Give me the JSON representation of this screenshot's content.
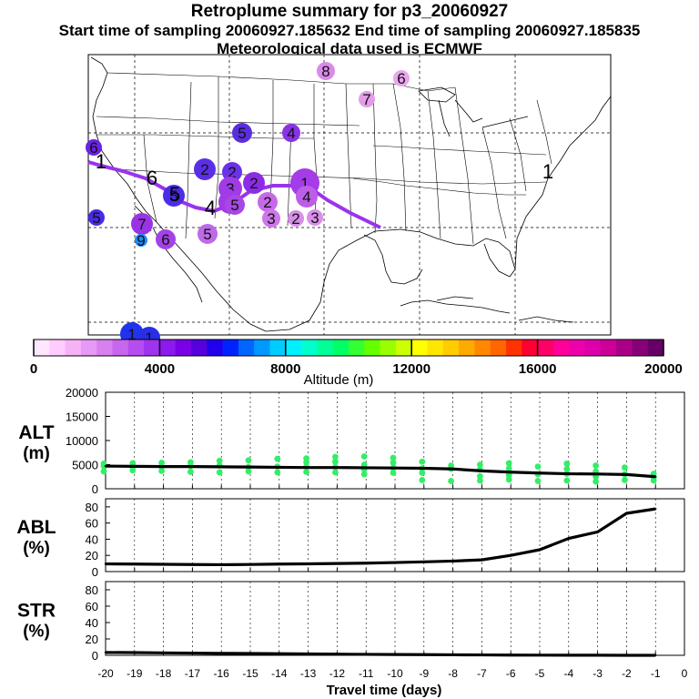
{
  "header": {
    "title": "Retroplume summary for p3_20060927",
    "subtitle": "Start time of sampling 20060927.185632     End time of sampling 20060927.185835",
    "met": "Meteorological data used is ECMWF"
  },
  "colorbar": {
    "tick_labels": [
      "0",
      "4000",
      "8000",
      "12000",
      "16000",
      "20000"
    ],
    "label": "Altitude (m)",
    "colors": [
      "#ffe6ff",
      "#ffccff",
      "#f5b3f5",
      "#e699f5",
      "#d980f0",
      "#c866ee",
      "#b54df0",
      "#9f33f0",
      "#8c1aee",
      "#7a00e6",
      "#5500dd",
      "#2200ee",
      "#0022ff",
      "#0066ff",
      "#0099ff",
      "#00ccff",
      "#00f0ff",
      "#00ffcc",
      "#00ff99",
      "#00ff66",
      "#33ff33",
      "#66ff00",
      "#99ff00",
      "#ccff00",
      "#ffff00",
      "#ffe600",
      "#ffcc00",
      "#ffaa00",
      "#ff8800",
      "#ff6600",
      "#ff3300",
      "#ff0033",
      "#ff0066",
      "#ff0099",
      "#ee00aa",
      "#dd00aa",
      "#cc0099",
      "#aa0088",
      "#880077",
      "#660066"
    ]
  },
  "map": {
    "source_label": "1",
    "markers": [
      {
        "label": "8",
        "x": 358,
        "y": 78,
        "r": 10,
        "color": "#d98be8"
      },
      {
        "label": "6",
        "x": 441,
        "y": 86,
        "r": 9,
        "color": "#e9a6f0"
      },
      {
        "label": "7",
        "x": 403,
        "y": 109,
        "r": 9,
        "color": "#e09ee8"
      },
      {
        "label": "5",
        "x": 266,
        "y": 146,
        "r": 11,
        "color": "#5a2ee0"
      },
      {
        "label": "4",
        "x": 320,
        "y": 146,
        "r": 10,
        "color": "#8a33e6"
      },
      {
        "label": "6",
        "x": 103,
        "y": 162,
        "r": 9,
        "color": "#6a22e6"
      },
      {
        "label": "2",
        "x": 225,
        "y": 186,
        "r": 12,
        "color": "#5b2ee6"
      },
      {
        "label": "2",
        "x": 255,
        "y": 189,
        "r": 11,
        "color": "#6a33e6"
      },
      {
        "label": "2",
        "x": 279,
        "y": 201,
        "r": 12,
        "color": "#8b2de6"
      },
      {
        "label": "1",
        "x": 335,
        "y": 201,
        "r": 16,
        "color": "#a43ce8"
      },
      {
        "label": "3",
        "x": 253,
        "y": 207,
        "r": 13,
        "color": "#a03be6"
      },
      {
        "label": "5",
        "x": 191,
        "y": 215,
        "r": 12,
        "color": "#4c2ce6"
      },
      {
        "label": "3",
        "x": 253,
        "y": 222,
        "r": 13,
        "color": "#a03be6"
      },
      {
        "label": "2",
        "x": 294,
        "y": 222,
        "r": 11,
        "color": "#c46ae8"
      },
      {
        "label": "4",
        "x": 337,
        "y": 216,
        "r": 12,
        "color": "#bd5ee8"
      },
      {
        "label": "5",
        "x": 258,
        "y": 225,
        "r": 11,
        "color": "#a846e6"
      },
      {
        "label": "3",
        "x": 298,
        "y": 240,
        "r": 10,
        "color": "#cd77e8"
      },
      {
        "label": "2",
        "x": 325,
        "y": 240,
        "r": 9,
        "color": "#d68ee8"
      },
      {
        "label": "3",
        "x": 346,
        "y": 239,
        "r": 9,
        "color": "#da90ea"
      },
      {
        "label": "5",
        "x": 106,
        "y": 239,
        "r": 9,
        "color": "#4a2ae6"
      },
      {
        "label": "7",
        "x": 156,
        "y": 246,
        "r": 12,
        "color": "#9a33e6"
      },
      {
        "label": "5",
        "x": 228,
        "y": 257,
        "r": 11,
        "color": "#bd6ae8"
      },
      {
        "label": "6",
        "x": 182,
        "y": 263,
        "r": 11,
        "color": "#a342e6"
      },
      {
        "label": "9",
        "x": 155,
        "y": 264,
        "r": 7,
        "color": "#1a8cff"
      },
      {
        "label": "1",
        "x": 145,
        "y": 367,
        "r": 13,
        "color": "#2233ee"
      },
      {
        "label": "1",
        "x": 164,
        "y": 371,
        "r": 12,
        "color": "#2a2ee6"
      }
    ],
    "path_labels": [
      {
        "label": "1",
        "x": 111,
        "y": 185
      },
      {
        "label": "6",
        "x": 167,
        "y": 203
      },
      {
        "label": "5",
        "x": 192,
        "y": 221
      },
      {
        "label": "4",
        "x": 231,
        "y": 236
      },
      {
        "label": "1",
        "x": 602,
        "y": 196
      }
    ]
  },
  "chart_data": [
    {
      "type": "scatter",
      "panel": "ALT",
      "ylabel": "ALT (m)",
      "xlabel": "Travel time (days)",
      "xlim": [
        -20,
        0
      ],
      "ylim": [
        0,
        20000
      ],
      "yticks": [
        "0",
        "5000",
        "10000",
        "15000",
        "20000"
      ],
      "xticks": [
        "-20",
        "-19",
        "-18",
        "-17",
        "-16",
        "-15",
        "-14",
        "-13",
        "-12",
        "-11",
        "-10",
        "-9",
        "-8",
        "-7",
        "-6",
        "-5",
        "-4",
        "-3",
        "-2",
        "-1",
        "0"
      ],
      "series": [
        {
          "name": "plume centroid altitude",
          "x": [
            -20,
            -19,
            -18,
            -17,
            -16,
            -15,
            -14,
            -13,
            -12,
            -11,
            -10,
            -9,
            -8,
            -7,
            -6,
            -5,
            -4,
            -3,
            -2,
            -1
          ],
          "values": [
            4700,
            4650,
            4600,
            4600,
            4550,
            4500,
            4450,
            4400,
            4400,
            4350,
            4300,
            4250,
            4100,
            3700,
            3450,
            3250,
            3100,
            3050,
            2950,
            2500
          ]
        },
        {
          "name": "cluster altitudes",
          "points": [
            {
              "x": -20,
              "y": 3600
            },
            {
              "x": -20,
              "y": 4700
            },
            {
              "x": -20,
              "y": 5200
            },
            {
              "x": -19,
              "y": 3800
            },
            {
              "x": -19,
              "y": 4500
            },
            {
              "x": -19,
              "y": 5300
            },
            {
              "x": -18,
              "y": 3700
            },
            {
              "x": -18,
              "y": 4600
            },
            {
              "x": -18,
              "y": 5400
            },
            {
              "x": -17,
              "y": 3500
            },
            {
              "x": -17,
              "y": 4700
            },
            {
              "x": -17,
              "y": 5500
            },
            {
              "x": -16,
              "y": 3400
            },
            {
              "x": -16,
              "y": 4800
            },
            {
              "x": -16,
              "y": 5800
            },
            {
              "x": -15,
              "y": 3600
            },
            {
              "x": -15,
              "y": 4500
            },
            {
              "x": -15,
              "y": 5900
            },
            {
              "x": -14,
              "y": 3400
            },
            {
              "x": -14,
              "y": 4600
            },
            {
              "x": -14,
              "y": 6200
            },
            {
              "x": -13,
              "y": 3500
            },
            {
              "x": -13,
              "y": 4600
            },
            {
              "x": -13,
              "y": 5500
            },
            {
              "x": -13,
              "y": 6300
            },
            {
              "x": -12,
              "y": 3400
            },
            {
              "x": -12,
              "y": 4500
            },
            {
              "x": -12,
              "y": 5600
            },
            {
              "x": -12,
              "y": 6600
            },
            {
              "x": -11,
              "y": 3000
            },
            {
              "x": -11,
              "y": 4000
            },
            {
              "x": -11,
              "y": 5000
            },
            {
              "x": -11,
              "y": 6700
            },
            {
              "x": -10,
              "y": 3300
            },
            {
              "x": -10,
              "y": 4300
            },
            {
              "x": -10,
              "y": 5400
            },
            {
              "x": -10,
              "y": 6400
            },
            {
              "x": -9,
              "y": 1800
            },
            {
              "x": -9,
              "y": 3300
            },
            {
              "x": -9,
              "y": 4200
            },
            {
              "x": -9,
              "y": 5600
            },
            {
              "x": -8,
              "y": 1600
            },
            {
              "x": -8,
              "y": 4100
            },
            {
              "x": -8,
              "y": 4800
            },
            {
              "x": -7,
              "y": 1700
            },
            {
              "x": -7,
              "y": 2600
            },
            {
              "x": -7,
              "y": 4000
            },
            {
              "x": -7,
              "y": 5000
            },
            {
              "x": -6,
              "y": 1900
            },
            {
              "x": -6,
              "y": 2800
            },
            {
              "x": -6,
              "y": 4200
            },
            {
              "x": -6,
              "y": 5300
            },
            {
              "x": -5,
              "y": 1600
            },
            {
              "x": -5,
              "y": 3000
            },
            {
              "x": -5,
              "y": 4600
            },
            {
              "x": -4,
              "y": 1700
            },
            {
              "x": -4,
              "y": 3100
            },
            {
              "x": -4,
              "y": 4100
            },
            {
              "x": -4,
              "y": 5200
            },
            {
              "x": -3,
              "y": 1500
            },
            {
              "x": -3,
              "y": 2500
            },
            {
              "x": -3,
              "y": 3600
            },
            {
              "x": -3,
              "y": 4800
            },
            {
              "x": -2,
              "y": 1800
            },
            {
              "x": -2,
              "y": 3000
            },
            {
              "x": -2,
              "y": 4400
            },
            {
              "x": -1,
              "y": 1700
            },
            {
              "x": -1,
              "y": 2300
            },
            {
              "x": -1,
              "y": 3100
            }
          ]
        }
      ]
    },
    {
      "type": "line",
      "panel": "ABL",
      "ylabel": "ABL (%)",
      "xlim": [
        -20,
        0
      ],
      "ylim": [
        0,
        90
      ],
      "yticks": [
        "0",
        "20",
        "40",
        "60",
        "80"
      ],
      "series": [
        {
          "name": "fraction in boundary layer",
          "x": [
            -20,
            -19,
            -18,
            -17,
            -16,
            -15,
            -14,
            -13,
            -12,
            -11,
            -10,
            -9,
            -8,
            -7,
            -6,
            -5,
            -4,
            -3,
            -2,
            -1
          ],
          "values": [
            9.5,
            9.3,
            9.0,
            8.7,
            8.5,
            8.8,
            9.3,
            9.6,
            10.0,
            10.4,
            11.2,
            12.0,
            13.0,
            14.5,
            20.0,
            27.0,
            41.0,
            49.0,
            72.0,
            77.5
          ]
        }
      ]
    },
    {
      "type": "line",
      "panel": "STR",
      "ylabel": "STR (%)",
      "xlim": [
        -20,
        0
      ],
      "ylim": [
        0,
        90
      ],
      "yticks": [
        "0",
        "20",
        "40",
        "60",
        "80"
      ],
      "series": [
        {
          "name": "fraction in stratosphere",
          "x": [
            -20,
            -19,
            -18,
            -17,
            -16,
            -15,
            -14,
            -13,
            -12,
            -11,
            -10,
            -9,
            -8,
            -7,
            -6,
            -5,
            -4,
            -3,
            -2,
            -1
          ],
          "values": [
            3.5,
            3.3,
            3.0,
            2.7,
            2.4,
            2.2,
            2.0,
            1.7,
            1.4,
            1.2,
            1.0,
            0.8,
            0.6,
            0.5,
            0.3,
            0.2,
            0.1,
            0.1,
            0.0,
            0.0
          ]
        }
      ]
    }
  ]
}
